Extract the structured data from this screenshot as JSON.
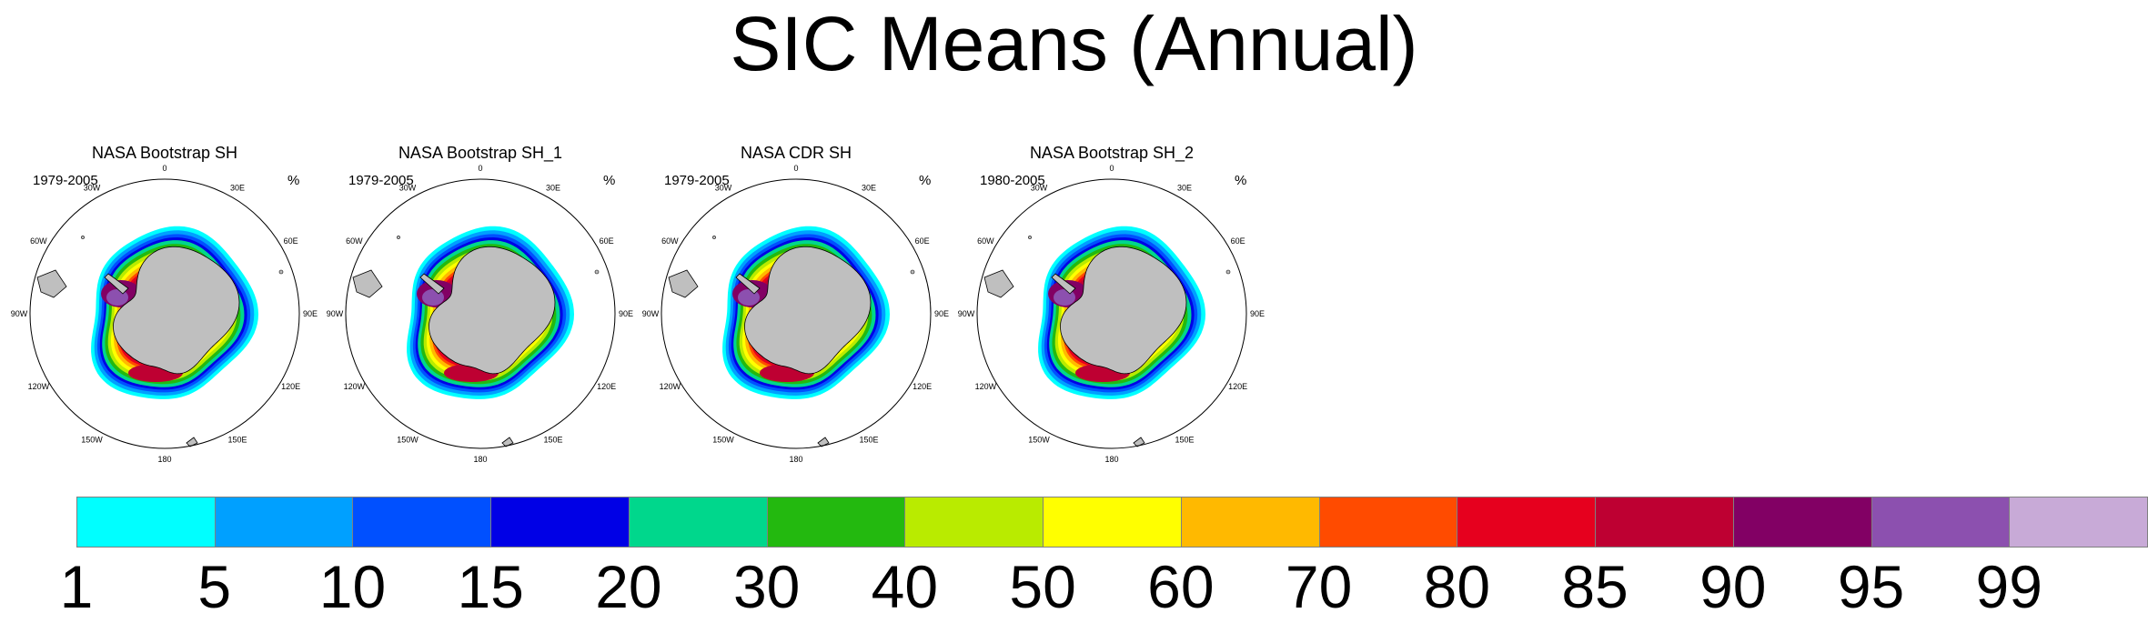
{
  "title": "SIC Means (Annual)",
  "panels": [
    {
      "title": "NASA Bootstrap SH",
      "period": "1979-2005",
      "units": "%"
    },
    {
      "title": "NASA Bootstrap SH_1",
      "period": "1979-2005",
      "units": "%"
    },
    {
      "title": "NASA CDR SH",
      "period": "1979-2005",
      "units": "%"
    },
    {
      "title": "NASA Bootstrap SH_2",
      "period": "1980-2005",
      "units": "%"
    }
  ],
  "map_labels": {
    "lon": [
      "0",
      "30E",
      "60E",
      "90E",
      "120E",
      "150E",
      "180",
      "150W",
      "120W",
      "90W",
      "60W",
      "30W"
    ]
  },
  "colorbar": {
    "colors": [
      "#00ffff",
      "#00a0ff",
      "#0050ff",
      "#0000e6",
      "#00d78c",
      "#23b90f",
      "#b9eb00",
      "#ffff00",
      "#ffb900",
      "#ff4b00",
      "#e6001e",
      "#be0032",
      "#820064",
      "#8c50af",
      "#c8aad7"
    ],
    "labels": [
      "1",
      "5",
      "10",
      "15",
      "20",
      "30",
      "40",
      "50",
      "60",
      "70",
      "80",
      "85",
      "90",
      "95",
      "99"
    ]
  }
}
